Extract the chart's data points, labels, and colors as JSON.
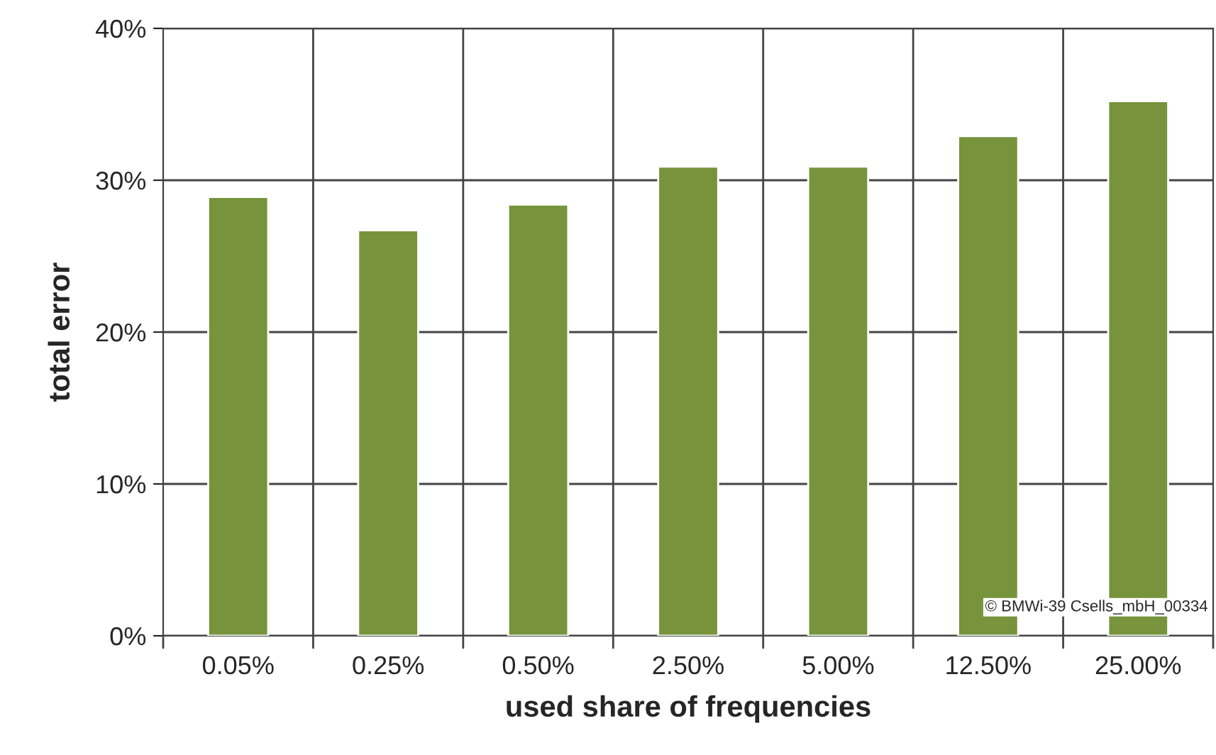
{
  "chart_data": {
    "type": "bar",
    "xlabel": "used share of frequencies",
    "ylabel": "total error",
    "categories": [
      "0.05%",
      "0.25%",
      "0.50%",
      "2.50%",
      "5.00%",
      "12.50%",
      "25.00%"
    ],
    "values": [
      28.9,
      26.7,
      28.4,
      30.9,
      30.9,
      32.9,
      35.2
    ],
    "color": "#77933c",
    "ylim": [
      0,
      40
    ],
    "yticks": [
      {
        "value": 0,
        "label": "0%"
      },
      {
        "value": 10,
        "label": "10%"
      },
      {
        "value": 20,
        "label": "20%"
      },
      {
        "value": 30,
        "label": "30%"
      },
      {
        "value": 40,
        "label": "40%"
      }
    ],
    "grid": true,
    "annotations": [
      "© BMWi-39 Csells_mbH_00334"
    ]
  }
}
